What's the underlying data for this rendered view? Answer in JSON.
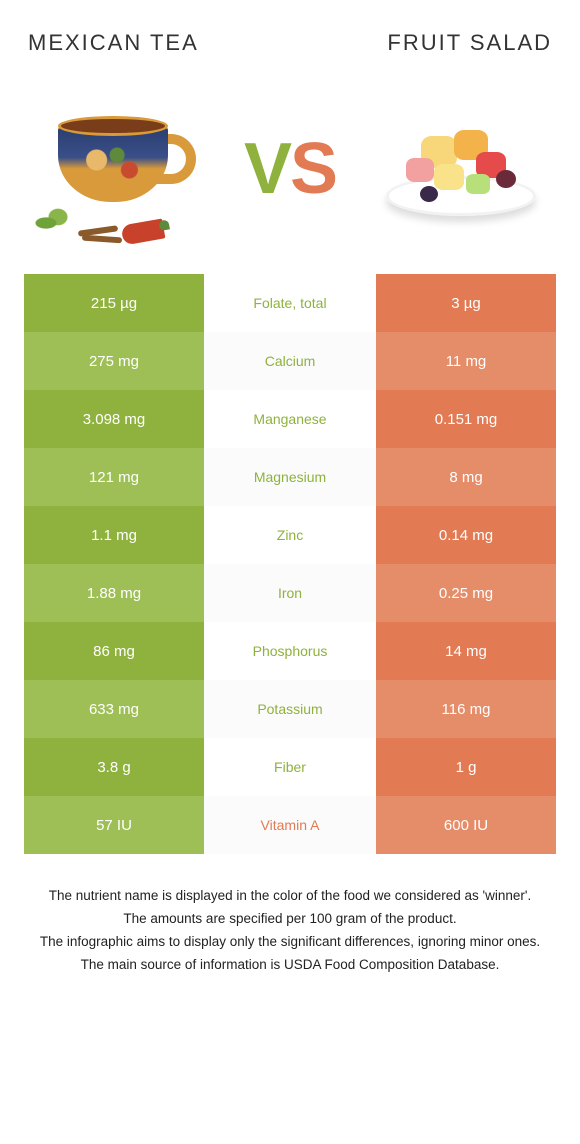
{
  "titles": {
    "left": "MEXICAN TEA",
    "right": "FRUIT SALAD"
  },
  "vs": {
    "v": "V",
    "s": "S"
  },
  "colors": {
    "left_strong": "#8eb23d",
    "left_soft": "#9ebf56",
    "right_strong": "#e27a53",
    "right_soft": "#e58c69",
    "mid_left_text": "#8eb23d",
    "mid_right_text": "#e27a53"
  },
  "rows": [
    {
      "label": "Folate, total",
      "left": "215 µg",
      "right": "3 µg",
      "winner": "left"
    },
    {
      "label": "Calcium",
      "left": "275 mg",
      "right": "11 mg",
      "winner": "left"
    },
    {
      "label": "Manganese",
      "left": "3.098 mg",
      "right": "0.151 mg",
      "winner": "left"
    },
    {
      "label": "Magnesium",
      "left": "121 mg",
      "right": "8 mg",
      "winner": "left"
    },
    {
      "label": "Zinc",
      "left": "1.1 mg",
      "right": "0.14 mg",
      "winner": "left"
    },
    {
      "label": "Iron",
      "left": "1.88 mg",
      "right": "0.25 mg",
      "winner": "left"
    },
    {
      "label": "Phosphorus",
      "left": "86 mg",
      "right": "14 mg",
      "winner": "left"
    },
    {
      "label": "Potassium",
      "left": "633 mg",
      "right": "116 mg",
      "winner": "left"
    },
    {
      "label": "Fiber",
      "left": "3.8 g",
      "right": "1 g",
      "winner": "left"
    },
    {
      "label": "Vitamin A",
      "left": "57 IU",
      "right": "600 IU",
      "winner": "right"
    }
  ],
  "footnotes": [
    "The nutrient name is displayed in the color of the food we considered as 'winner'.",
    "The amounts are specified per 100 gram of the product.",
    "The infographic aims to display only the significant differences, ignoring minor ones.",
    "The main source of information is USDA Food Composition Database."
  ]
}
